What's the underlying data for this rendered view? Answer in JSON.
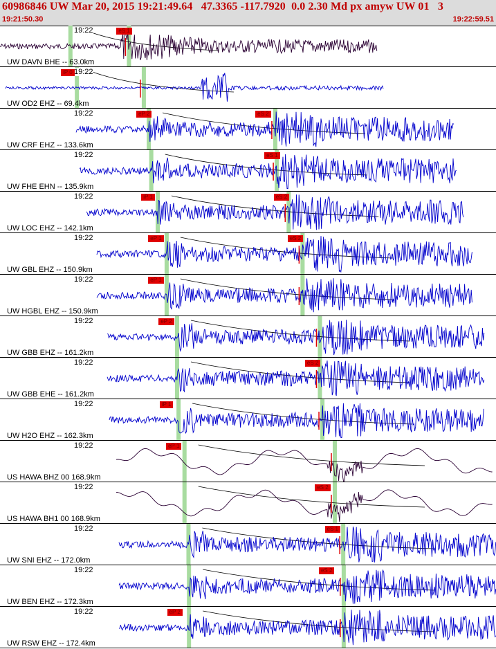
{
  "header": {
    "title": "60986846 UW Mar 20, 2015 19:21:49.64   47.3365 -117.7920  0.0 2.30 Md px amyw UW 01   3",
    "start_time": "19:21:50.30",
    "end_time": "19:22:59.51"
  },
  "colors": {
    "header_bg": "#dcdcdc",
    "header_text": "#c00000",
    "trace_blue": "#0000cc",
    "trace_dark": "#2a0033",
    "pick_red": "#e00000",
    "marker_green": "#a8dca0"
  },
  "panels": [
    {
      "time_label": "19:22",
      "station": "UW DAVN BHE -- 63.0km",
      "trace_color": "dark",
      "picks": [
        {
          "label": "eS 1",
          "pos": 0.26
        }
      ],
      "p_arrival": 0.142,
      "s_arrival": 0.26
    },
    {
      "time_label": "19:22",
      "station": "UW OD2 EHZ -- 69.4km",
      "trace_color": "blue",
      "picks": [
        {
          "label": "iP 0",
          "pos": 0.148
        }
      ],
      "p_arrival": 0.155,
      "s_arrival": 0.29
    },
    {
      "time_label": "19:22",
      "station": "UW CRF EHZ -- 133.6km",
      "trace_color": "blue",
      "picks": [
        {
          "label": "eP 2",
          "pos": 0.3
        },
        {
          "label": "eS 2",
          "pos": 0.54
        }
      ],
      "p_arrival": 0.3,
      "s_arrival": 0.555
    },
    {
      "time_label": "19:22",
      "station": "UW FHE EHN -- 135.9km",
      "trace_color": "blue",
      "picks": [
        {
          "label": "eS 1",
          "pos": 0.558
        }
      ],
      "p_arrival": 0.305,
      "s_arrival": 0.558
    },
    {
      "time_label": "19:22",
      "station": "UW LOC EHZ -- 142.1km",
      "trace_color": "blue",
      "picks": [
        {
          "label": "iP 1",
          "pos": 0.31
        },
        {
          "label": "eS 2",
          "pos": 0.577
        }
      ],
      "p_arrival": 0.318,
      "s_arrival": 0.582
    },
    {
      "time_label": "19:22",
      "station": "UW GBL EHZ -- 150.9km",
      "trace_color": "blue",
      "picks": [
        {
          "label": "eP 1",
          "pos": 0.324
        },
        {
          "label": "eS 2",
          "pos": 0.605
        }
      ],
      "p_arrival": 0.336,
      "s_arrival": 0.61
    },
    {
      "time_label": "19:22",
      "station": "UW HGBL EHZ -- 150.9km",
      "trace_color": "blue",
      "picks": [
        {
          "label": "eP 1",
          "pos": 0.324
        }
      ],
      "p_arrival": 0.336,
      "s_arrival": 0.61
    },
    {
      "time_label": "19:22",
      "station": "UW GBB EHZ -- 161.2km",
      "trace_color": "blue",
      "picks": [
        {
          "label": "eP 2",
          "pos": 0.345
        }
      ],
      "p_arrival": 0.357,
      "s_arrival": 0.645
    },
    {
      "time_label": "19:22",
      "station": "UW GBB EHE -- 161.2km",
      "trace_color": "blue",
      "picks": [
        {
          "label": "eS 2",
          "pos": 0.64
        }
      ],
      "p_arrival": 0.357,
      "s_arrival": 0.645
    },
    {
      "time_label": "19:22",
      "station": "UW H2O EHZ -- 162.3km",
      "trace_color": "blue",
      "picks": [
        {
          "label": "iP 1",
          "pos": 0.347
        }
      ],
      "p_arrival": 0.36,
      "s_arrival": 0.65
    },
    {
      "time_label": "19:22",
      "station": "US HAWA BHZ 00 168.9km",
      "trace_color": "dark",
      "picks": [
        {
          "label": "eP 1",
          "pos": 0.36
        }
      ],
      "p_arrival": 0.372,
      "s_arrival": 0.675
    },
    {
      "time_label": "19:22",
      "station": "US HAWA BH1 00 168.9km",
      "trace_color": "dark",
      "picks": [
        {
          "label": "eS 2",
          "pos": 0.66
        }
      ],
      "p_arrival": 0.372,
      "s_arrival": 0.675
    },
    {
      "time_label": "19:22",
      "station": "UW SNI EHZ -- 172.0km",
      "trace_color": "blue",
      "picks": [
        {
          "label": "eS 1",
          "pos": 0.68
        }
      ],
      "p_arrival": 0.38,
      "s_arrival": 0.692
    },
    {
      "time_label": "19:22",
      "station": "UW BEN EHZ -- 172.3km",
      "trace_color": "blue",
      "picks": [
        {
          "label": "eS 2",
          "pos": 0.668
        }
      ],
      "p_arrival": 0.381,
      "s_arrival": 0.693
    },
    {
      "time_label": "19:22",
      "station": "UW RSW EHZ -- 172.4km",
      "trace_color": "blue",
      "picks": [
        {
          "label": "eP 2",
          "pos": 0.362
        }
      ],
      "p_arrival": 0.381,
      "s_arrival": 0.693
    }
  ]
}
